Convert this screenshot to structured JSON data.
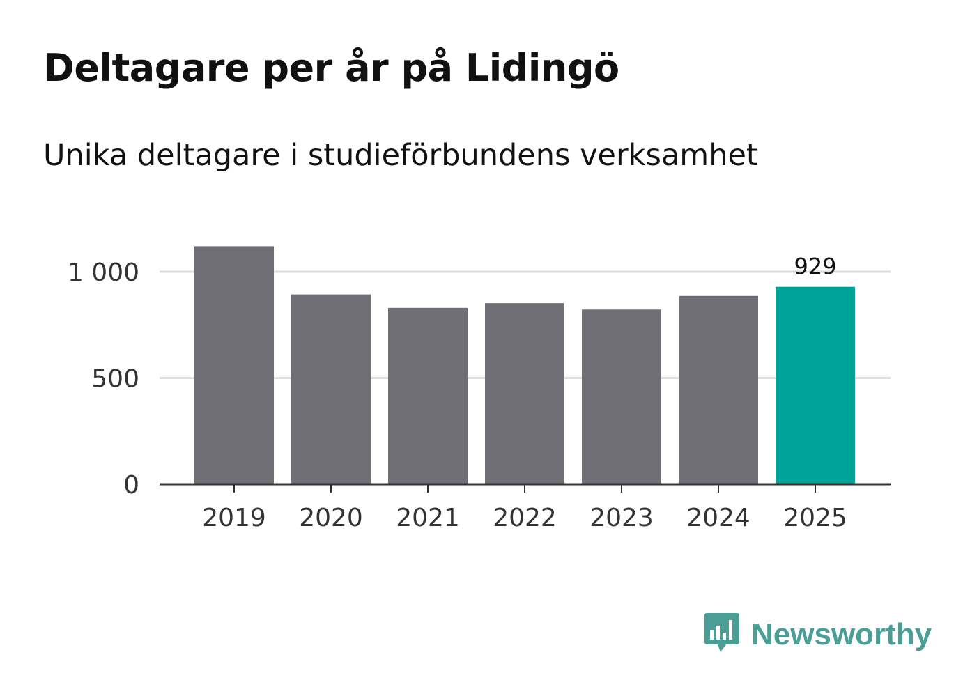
{
  "header": {
    "title": "Deltagare per år på Lidingö",
    "subtitle": "Unika deltagare i studieförbundens verksamhet"
  },
  "branding": {
    "logo_text": "Newsworthy",
    "logo_icon": "newsworthy-bar-chart-icon",
    "logo_color": "#4a9e96"
  },
  "colors": {
    "bar_default": "#6f6e74",
    "bar_highlight": "#00a398",
    "gridline": "#dddddd",
    "axis": "#333333",
    "tick_text": "#333333"
  },
  "chart_data": {
    "type": "bar",
    "title": "Deltagare per år på Lidingö",
    "subtitle": "Unika deltagare i studieförbundens verksamhet",
    "xlabel": "",
    "ylabel": "",
    "categories": [
      "2019",
      "2020",
      "2021",
      "2022",
      "2023",
      "2024",
      "2025"
    ],
    "values": [
      1120,
      893,
      830,
      852,
      822,
      886,
      929
    ],
    "highlight_index": 6,
    "data_labels": [
      {
        "index": 6,
        "text": "929"
      }
    ],
    "ylim": [
      0,
      1000
    ],
    "yticks": [
      0,
      500,
      1000
    ],
    "ytick_labels": [
      "0",
      "500",
      "1 000"
    ],
    "grid": true
  }
}
